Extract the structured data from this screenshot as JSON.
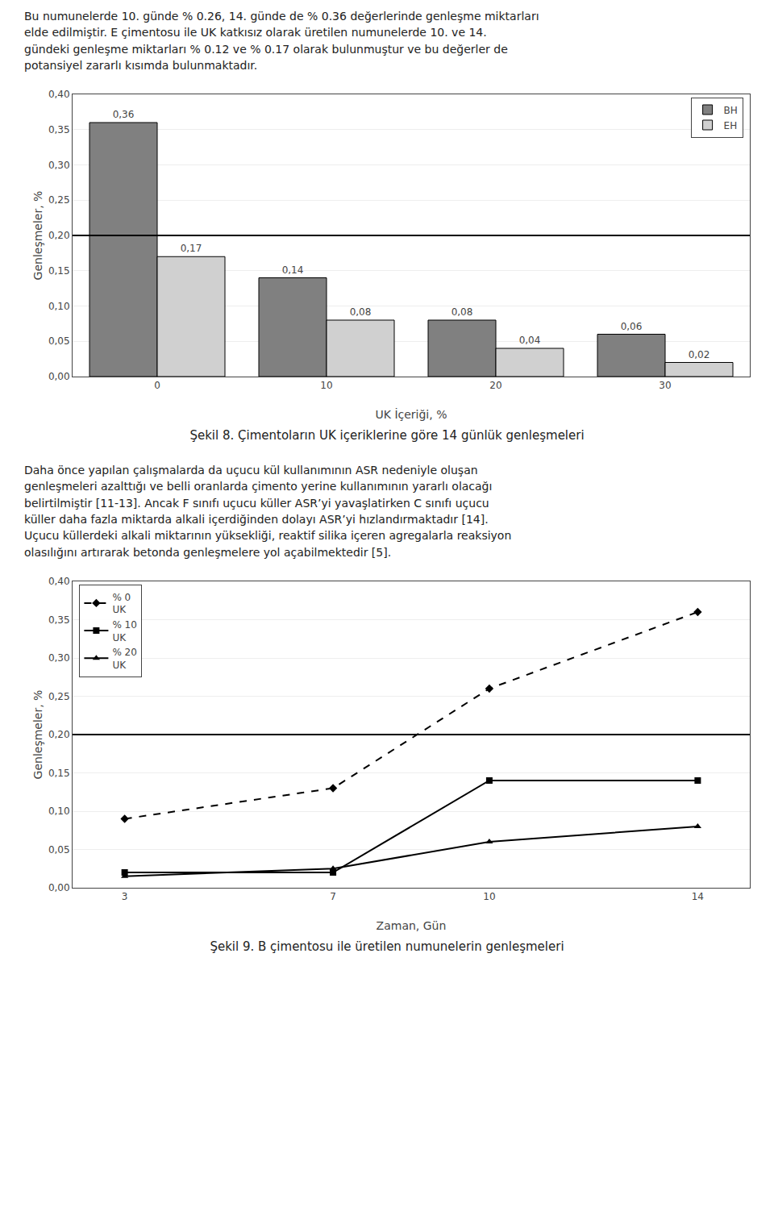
{
  "chart_data": [
    {
      "type": "bar",
      "title": "Şekil 8. Çimentoların UK içeriklerine göre 14 günlük genleşmeleri",
      "annotations": [
        "Bu numunelerde 10. günde % 0.26, 14. günde de % 0.36 değerlerinde genleşme miktarları\nelde edilmiştir. E çimentosu ile UK katkısız olarak üretilen numunelerde 10. ve 14.\ngündeki genleşme miktarları % 0.12 ve % 0.17 olarak bulunmuştur ve bu değerler de\npotansiyel zararlı kısımda bulunmaktadır."
      ],
      "categories": [
        "0",
        "10",
        "20",
        "30"
      ],
      "series": [
        {
          "name": "BH",
          "color": "#808080",
          "values": [
            0.36,
            0.14,
            0.08,
            0.06
          ],
          "value_labels": [
            "0,36",
            "0,14",
            "0,08",
            "0,06"
          ]
        },
        {
          "name": "EH",
          "color": "#d0d0d0",
          "values": [
            0.17,
            0.08,
            0.04,
            0.02
          ],
          "value_labels": [
            "0,17",
            "0,08",
            "0,04",
            "0,02"
          ]
        }
      ],
      "xlabel": "UK İçeriği, %",
      "ylabel": "Genleşmeler, %",
      "ylim": [
        0.0,
        0.4
      ],
      "yticks": [
        {
          "value": 0.0,
          "label": "0,00"
        },
        {
          "value": 0.05,
          "label": "0,05"
        },
        {
          "value": 0.1,
          "label": "0,10"
        },
        {
          "value": 0.15,
          "label": "0,15"
        },
        {
          "value": 0.2,
          "label": "0,20"
        },
        {
          "value": 0.25,
          "label": "0,25"
        },
        {
          "value": 0.3,
          "label": "0,30"
        },
        {
          "value": 0.35,
          "label": "0,35"
        },
        {
          "value": 0.4,
          "label": "0,40"
        }
      ],
      "hline": 0.2,
      "grid": true,
      "legend": "upper right",
      "data_labels": true
    },
    {
      "type": "line",
      "title": "Şekil 9. B çimentosu ile üretilen numunelerin genleşmeleri",
      "annotations": [
        "Daha önce yapılan çalışmalarda da uçucu kül kullanımının ASR nedeniyle oluşan\ngenleşmeleri azalttığı ve belli oranlarda çimento yerine kullanımının yararlı olacağı\nbelirtilmiştir [11-13]. Ancak F sınıfı uçucu küller ASR’yi yavaşlatirken C sınıfı uçucu\nküller daha fazla miktarda alkali içerdiğinden dolayı ASR’yi hızlandırmaktadır [14].\nUçucu küllerdeki alkali miktarının yüksekliği, reaktif silika içeren agregalarla reaksiyon\nolasılığını artırarak betonda genleşmelere yol açabilmektedir [5]."
      ],
      "x": [
        3,
        7,
        10,
        14
      ],
      "series": [
        {
          "name": "% 0\nUK",
          "color": "#000000",
          "line_style": "dashed",
          "marker": "diamond",
          "values": [
            0.09,
            0.13,
            0.26,
            0.36
          ]
        },
        {
          "name": "% 10\nUK",
          "color": "#000000",
          "line_style": "solid",
          "marker": "square",
          "values": [
            0.02,
            0.02,
            0.14,
            0.14
          ]
        },
        {
          "name": "% 20\nUK",
          "color": "#000000",
          "line_style": "solid",
          "marker": "triangle",
          "values": [
            0.015,
            0.025,
            0.06,
            0.08
          ]
        }
      ],
      "xlabel": "Zaman, Gün",
      "ylabel": "Genleşmeler, %",
      "xlim": [
        2,
        15
      ],
      "xticks": [
        3,
        7,
        10,
        14
      ],
      "ylim": [
        0.0,
        0.4
      ],
      "yticks": [
        {
          "value": 0.0,
          "label": "0,00"
        },
        {
          "value": 0.05,
          "label": "0,05"
        },
        {
          "value": 0.1,
          "label": "0,10"
        },
        {
          "value": 0.15,
          "label": "0,15"
        },
        {
          "value": 0.2,
          "label": "0,20"
        },
        {
          "value": 0.25,
          "label": "0,25"
        },
        {
          "value": 0.3,
          "label": "0,30"
        },
        {
          "value": 0.35,
          "label": "0,35"
        },
        {
          "value": 0.4,
          "label": "0,40"
        }
      ],
      "hline": 0.2,
      "grid": true,
      "legend": "upper left"
    }
  ]
}
